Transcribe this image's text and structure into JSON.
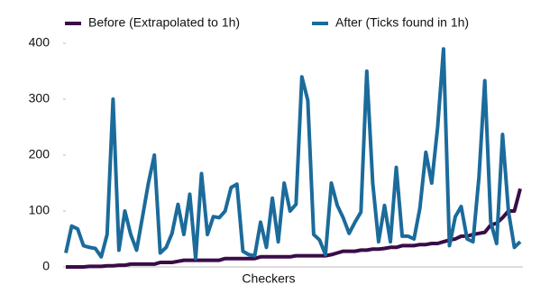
{
  "chart_data": {
    "type": "line",
    "xlabel": "Checkers",
    "categories": [
      null,
      null,
      null,
      null,
      null,
      null,
      null,
      null,
      null,
      null,
      null,
      null,
      null,
      null,
      null,
      null,
      null,
      null,
      null,
      null,
      null,
      null,
      null,
      null,
      null,
      null,
      null,
      null,
      null,
      null,
      null,
      null,
      null,
      null,
      null,
      null,
      null,
      null,
      null,
      null,
      null,
      null,
      null,
      null,
      null,
      null,
      null,
      null,
      null,
      null,
      null,
      null,
      null,
      null,
      null,
      null,
      null,
      null,
      null,
      null,
      null,
      null,
      null,
      null,
      null,
      null,
      null,
      null,
      null,
      null,
      null,
      null,
      null,
      null,
      null,
      null,
      null,
      null
    ],
    "series": [
      {
        "name": "Before (Extrapolated to 1h)",
        "color": "#3a0c48",
        "values": [
          0,
          0,
          0,
          0,
          1,
          1,
          1,
          2,
          2,
          3,
          3,
          5,
          5,
          5,
          5,
          5,
          8,
          8,
          8,
          10,
          12,
          12,
          12,
          12,
          12,
          12,
          12,
          15,
          15,
          15,
          15,
          15,
          15,
          18,
          18,
          18,
          18,
          18,
          18,
          20,
          20,
          20,
          20,
          20,
          20,
          22,
          25,
          28,
          28,
          28,
          30,
          30,
          32,
          32,
          33,
          35,
          35,
          38,
          38,
          38,
          40,
          40,
          42,
          42,
          45,
          48,
          50,
          55,
          55,
          58,
          60,
          62,
          75,
          78,
          88,
          100,
          100,
          140
        ]
      },
      {
        "name": "After (Ticks found in 1h)",
        "color": "#1b6b9b",
        "values": [
          25,
          73,
          68,
          38,
          35,
          33,
          18,
          58,
          300,
          30,
          100,
          58,
          30,
          90,
          150,
          200,
          25,
          35,
          60,
          112,
          58,
          130,
          15,
          167,
          58,
          90,
          88,
          100,
          142,
          148,
          28,
          22,
          20,
          80,
          35,
          123,
          45,
          150,
          100,
          112,
          340,
          298,
          58,
          48,
          22,
          150,
          110,
          88,
          60,
          80,
          98,
          350,
          150,
          45,
          110,
          45,
          178,
          55,
          55,
          50,
          105,
          205,
          150,
          250,
          390,
          38,
          90,
          108,
          50,
          45,
          160,
          333,
          80,
          42,
          237,
          100,
          35,
          45
        ]
      }
    ],
    "ylim": [
      0,
      400
    ],
    "yticks": [
      0,
      100,
      200,
      300,
      400
    ],
    "grid": false,
    "legend": "top"
  }
}
